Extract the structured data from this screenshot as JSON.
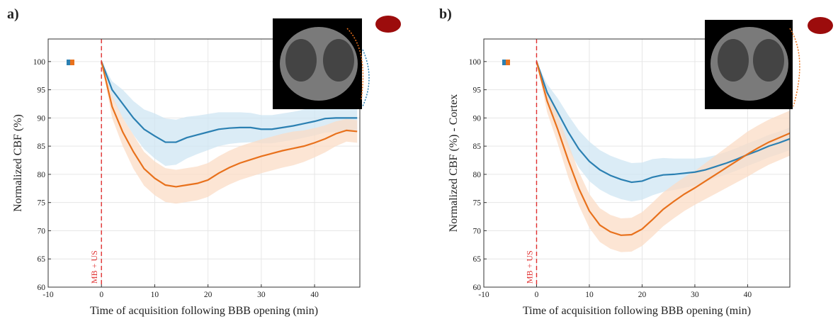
{
  "chart_data": [
    {
      "type": "line",
      "panel_label": "a)",
      "x_label": "Time of acquisition following BBB opening (min)",
      "y_label": "Normalized CBF (%)",
      "annotation": "MB + US",
      "annotation_x": 0,
      "xlim": [
        -10,
        48.5
      ],
      "ylim": [
        60,
        104
      ],
      "xticks": [
        -10,
        0,
        10,
        20,
        30,
        40
      ],
      "yticks": [
        60,
        65,
        70,
        75,
        80,
        85,
        90,
        95,
        100
      ],
      "grid": true,
      "x": [
        0,
        2,
        4,
        6,
        8,
        10,
        12,
        14,
        16,
        18,
        20,
        22,
        24,
        26,
        28,
        30,
        32,
        34,
        36,
        38,
        40,
        42,
        44,
        46,
        48
      ],
      "series": [
        {
          "color": "#2b80b2",
          "values": [
            100,
            95,
            92.5,
            90,
            88,
            86.8,
            85.7,
            85.7,
            86.5,
            87,
            87.5,
            88,
            88.2,
            88.3,
            88.3,
            88,
            88,
            88.3,
            88.6,
            89,
            89.4,
            89.9,
            90,
            90,
            90
          ],
          "band": [
            0,
            1.5,
            2.5,
            3,
            3.5,
            4,
            4.2,
            4,
            3.7,
            3.4,
            3.2,
            3,
            2.8,
            2.7,
            2.6,
            2.5,
            2.5,
            2.5,
            2.5,
            2.5,
            2.5,
            2.5,
            2.5,
            2.5,
            2.5
          ]
        },
        {
          "color": "#e8711c",
          "values": [
            100,
            92,
            87.5,
            84,
            81,
            79.3,
            78.1,
            77.8,
            78.1,
            78.4,
            79,
            80.2,
            81.2,
            82,
            82.6,
            83.2,
            83.7,
            84.2,
            84.6,
            85,
            85.6,
            86.3,
            87.2,
            87.8,
            87.6
          ],
          "band": [
            0,
            2,
            2.5,
            3,
            3,
            3,
            3,
            3,
            3,
            3,
            3,
            3,
            3,
            3,
            3,
            3,
            3,
            3,
            3,
            2.8,
            2.6,
            2.4,
            2.2,
            2,
            2
          ]
        }
      ]
    },
    {
      "type": "line",
      "panel_label": "b)",
      "x_label": "Time of acquisition following BBB opening (min)",
      "y_label": "Normalized CBF (%) - Cortex",
      "annotation": "MB + US",
      "annotation_x": 0,
      "xlim": [
        -10,
        48
      ],
      "ylim": [
        60,
        104
      ],
      "xticks": [
        -10,
        0,
        10,
        20,
        30,
        40
      ],
      "yticks": [
        60,
        65,
        70,
        75,
        80,
        85,
        90,
        95,
        100
      ],
      "grid": true,
      "x": [
        0,
        2,
        4,
        6,
        8,
        10,
        12,
        14,
        16,
        18,
        20,
        22,
        24,
        26,
        28,
        30,
        32,
        34,
        36,
        38,
        40,
        42,
        44,
        46,
        48
      ],
      "series": [
        {
          "color": "#2b80b2",
          "values": [
            100,
            94.5,
            91,
            87.5,
            84.5,
            82.3,
            80.8,
            79.8,
            79.1,
            78.6,
            78.8,
            79.5,
            79.9,
            80,
            80.2,
            80.4,
            80.8,
            81.4,
            82,
            82.7,
            83.5,
            84.2,
            85,
            85.6,
            86.3
          ],
          "band": [
            0,
            1.5,
            2.5,
            3,
            3.3,
            3.5,
            3.5,
            3.5,
            3.5,
            3.4,
            3.3,
            3.2,
            3,
            2.8,
            2.6,
            2.4,
            2.2,
            2,
            2,
            2,
            2,
            2,
            2,
            2,
            2
          ]
        },
        {
          "color": "#e8711c",
          "values": [
            100,
            93,
            88,
            82.5,
            77.5,
            73.5,
            71,
            69.8,
            69.2,
            69.3,
            70.3,
            72,
            73.8,
            75.2,
            76.5,
            77.6,
            78.8,
            80,
            81.2,
            82.4,
            83.6,
            84.7,
            85.7,
            86.5,
            87.3
          ],
          "band": [
            0,
            2,
            2.5,
            3,
            3,
            3,
            3,
            3,
            3,
            3,
            3,
            3,
            3,
            3,
            3,
            3,
            3.2,
            3.4,
            3.6,
            3.8,
            4,
            4,
            4,
            4,
            4
          ]
        }
      ]
    }
  ]
}
